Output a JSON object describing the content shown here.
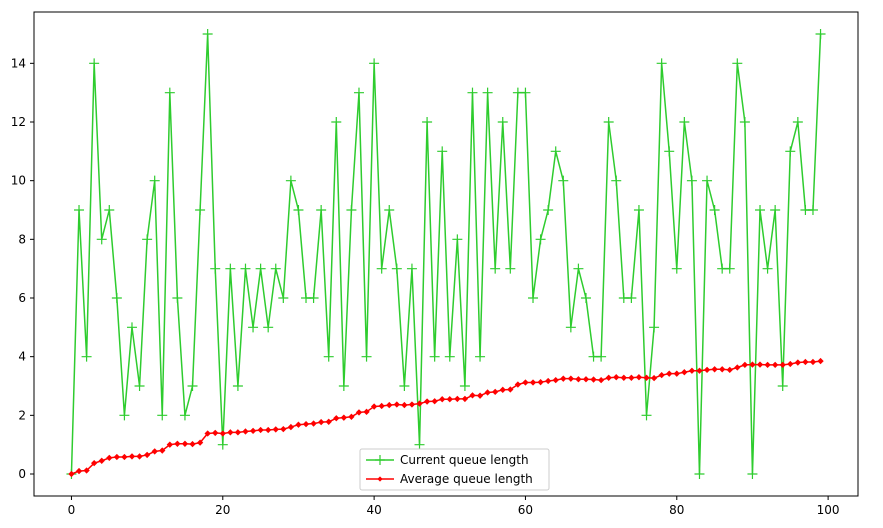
{
  "chart_data": {
    "type": "line",
    "x": [
      0,
      1,
      2,
      3,
      4,
      5,
      6,
      7,
      8,
      9,
      10,
      11,
      12,
      13,
      14,
      15,
      16,
      17,
      18,
      19,
      20,
      21,
      22,
      23,
      24,
      25,
      26,
      27,
      28,
      29,
      30,
      31,
      32,
      33,
      34,
      35,
      36,
      37,
      38,
      39,
      40,
      41,
      42,
      43,
      44,
      45,
      46,
      47,
      48,
      49,
      50,
      51,
      52,
      53,
      54,
      55,
      56,
      57,
      58,
      59,
      60,
      61,
      62,
      63,
      64,
      65,
      66,
      67,
      68,
      69,
      70,
      71,
      72,
      73,
      74,
      75,
      76,
      77,
      78,
      79,
      80,
      81,
      82,
      83,
      84,
      85,
      86,
      87,
      88,
      89,
      90,
      91,
      92,
      93,
      94,
      95,
      96,
      97,
      98,
      99
    ],
    "series": [
      {
        "name": "Current queue length",
        "color": "#2ecc2e",
        "marker": "plus",
        "values": [
          0,
          9,
          4,
          14,
          8,
          9,
          6,
          2,
          5,
          3,
          8,
          10,
          2,
          13,
          6,
          2,
          3,
          9,
          15,
          7,
          1,
          7,
          3,
          7,
          5,
          7,
          5,
          7,
          6,
          10,
          9,
          6,
          6,
          9,
          4,
          12,
          3,
          9,
          13,
          4,
          14,
          7,
          9,
          7,
          3,
          7,
          1,
          12,
          4,
          11,
          4,
          8,
          3,
          13,
          4,
          13,
          7,
          12,
          7,
          13,
          13,
          6,
          8,
          9,
          11,
          10,
          5,
          7,
          6,
          4,
          4,
          12,
          10,
          6,
          6,
          9,
          2,
          5,
          14,
          11,
          7,
          12,
          10,
          0,
          10,
          9,
          7,
          7,
          14,
          12,
          0,
          9,
          7,
          9,
          3,
          11,
          12,
          9,
          9,
          15
        ]
      },
      {
        "name": "Average queue length",
        "color": "#ff0000",
        "marker": "diamond",
        "values": [
          0,
          0.1,
          0.12,
          0.37,
          0.45,
          0.55,
          0.58,
          0.58,
          0.6,
          0.6,
          0.65,
          0.77,
          0.8,
          1.0,
          1.03,
          1.03,
          1.02,
          1.07,
          1.38,
          1.4,
          1.38,
          1.42,
          1.42,
          1.45,
          1.47,
          1.5,
          1.5,
          1.52,
          1.53,
          1.6,
          1.68,
          1.7,
          1.72,
          1.77,
          1.78,
          1.9,
          1.92,
          1.95,
          2.1,
          2.12,
          2.3,
          2.32,
          2.35,
          2.37,
          2.35,
          2.37,
          2.4,
          2.47,
          2.48,
          2.55,
          2.55,
          2.56,
          2.56,
          2.68,
          2.67,
          2.78,
          2.8,
          2.87,
          2.88,
          3.05,
          3.12,
          3.12,
          3.13,
          3.17,
          3.2,
          3.25,
          3.25,
          3.23,
          3.23,
          3.22,
          3.2,
          3.28,
          3.3,
          3.28,
          3.28,
          3.3,
          3.28,
          3.27,
          3.37,
          3.42,
          3.42,
          3.47,
          3.52,
          3.52,
          3.55,
          3.57,
          3.57,
          3.55,
          3.63,
          3.72,
          3.73,
          3.73,
          3.72,
          3.72,
          3.72,
          3.75,
          3.8,
          3.82,
          3.82,
          3.85
        ]
      }
    ],
    "xlim": [
      -4.95,
      103.95
    ],
    "ylim": [
      -0.75,
      15.75
    ],
    "xticks": [
      0,
      20,
      40,
      60,
      80,
      100
    ],
    "yticks": [
      0,
      2,
      4,
      6,
      8,
      10,
      12,
      14
    ],
    "grid": false,
    "legend_position": "bottom-center",
    "title": "",
    "xlabel": "",
    "ylabel": ""
  }
}
